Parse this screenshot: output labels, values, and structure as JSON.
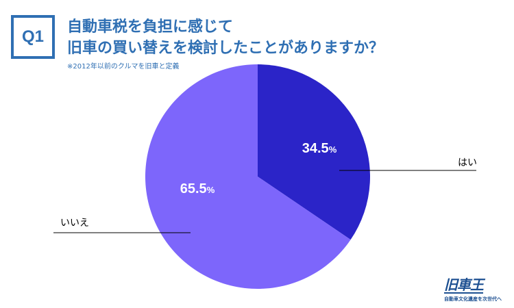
{
  "header": {
    "badge": "Q1",
    "title_line1": "自動車税を負担に感じて",
    "title_line2": "旧車の買い替えを検討したことがありますか？",
    "note": "※2012年以前のクルマを旧車と定義"
  },
  "colors": {
    "accent": "#2f6fb3",
    "slice_yes": "#2b24c8",
    "slice_no": "#7d66fb",
    "leader": "#000000"
  },
  "chart_data": {
    "type": "pie",
    "title": "自動車税を負担に感じて旧車の買い替えを検討したことがありますか？",
    "slices": [
      {
        "label": "はい",
        "value": 34.5,
        "value_label": "34.5",
        "unit": "%"
      },
      {
        "label": "いいえ",
        "value": 65.5,
        "value_label": "65.5",
        "unit": "%"
      }
    ]
  },
  "logo": {
    "mark": "旧車王",
    "tagline": "自動車文化遺産を次世代へ"
  }
}
